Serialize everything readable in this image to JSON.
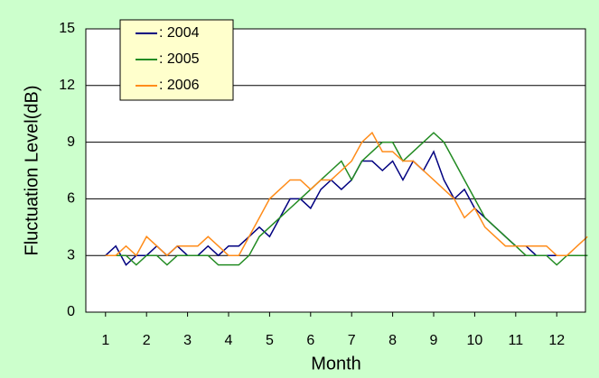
{
  "chart_data": {
    "type": "line",
    "ylabel": "Fluctuation Level(dB)",
    "xlabel": "Month",
    "x": [
      1,
      1.25,
      1.5,
      1.75,
      2,
      2.25,
      2.5,
      2.75,
      3,
      3.25,
      3.5,
      3.75,
      4,
      4.25,
      4.5,
      4.75,
      5,
      5.25,
      5.5,
      5.75,
      6,
      6.25,
      6.5,
      6.75,
      7,
      7.25,
      7.5,
      7.75,
      8,
      8.25,
      8.5,
      8.75,
      9,
      9.25,
      9.5,
      9.75,
      10,
      10.25,
      10.5,
      10.75,
      11,
      11.25,
      11.5,
      11.75,
      12,
      12.25,
      12.5,
      12.75
    ],
    "series": [
      {
        "name": ": 2004",
        "color": "#000080",
        "values": [
          3,
          3.5,
          2.5,
          3,
          3,
          3.5,
          3,
          3.5,
          3,
          3,
          3.5,
          3,
          3.5,
          3.5,
          4,
          4.5,
          4,
          5,
          6,
          6,
          5.5,
          6.5,
          7,
          6.5,
          7,
          8,
          8,
          7.5,
          8,
          7,
          8,
          7.5,
          8.5,
          7,
          6,
          6.5,
          5.5,
          5,
          4.5,
          4,
          3.5,
          3.5,
          3,
          3,
          3,
          3,
          3,
          3
        ]
      },
      {
        "name": ": 2005",
        "color": "#228b22",
        "values": [
          3,
          3,
          3,
          2.5,
          3,
          3,
          2.5,
          3,
          3,
          3,
          3,
          2.5,
          2.5,
          2.5,
          3,
          4,
          4.5,
          5,
          5.5,
          6,
          6.5,
          7,
          7.5,
          8,
          7,
          8,
          8.5,
          9,
          9,
          8,
          8.5,
          9,
          9.5,
          9,
          8,
          7,
          6,
          5,
          4.5,
          4,
          3.5,
          3,
          3,
          3,
          2.5,
          3,
          3,
          3
        ]
      },
      {
        "name": ": 2006",
        "color": "#ff8c1a",
        "values": [
          3,
          3,
          3.5,
          3,
          4,
          3.5,
          3,
          3.5,
          3.5,
          3.5,
          4,
          3.5,
          3,
          3,
          4,
          5,
          6,
          6.5,
          7,
          7,
          6.5,
          7,
          7,
          7.5,
          8,
          9,
          9.5,
          8.5,
          8.5,
          8,
          8,
          7.5,
          7,
          6.5,
          6,
          5,
          5.5,
          4.5,
          4,
          3.5,
          3.5,
          3.5,
          3.5,
          3.5,
          3,
          3,
          3.5,
          4
        ]
      }
    ],
    "xlim": [
      0.52,
      12.7
    ],
    "xticks": [
      1,
      2,
      3,
      4,
      5,
      6,
      7,
      8,
      9,
      10,
      11,
      12
    ],
    "ylim": [
      0,
      15
    ],
    "yticks": [
      0,
      3,
      6,
      9,
      12,
      15
    ],
    "grid": true,
    "legend": "top-left"
  }
}
